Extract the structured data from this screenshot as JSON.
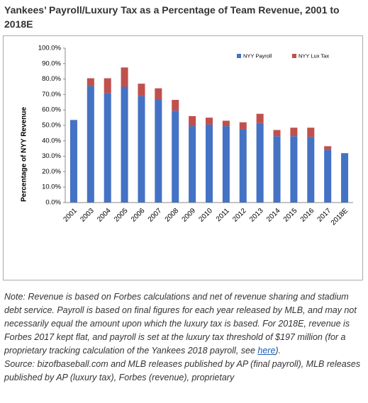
{
  "chart_data": {
    "type": "stacked-bar",
    "title": "Yankees’ Payroll/Luxury Tax as a Percentage of Team Revenue, 2001 to 2018E",
    "y_label": "Percentage of NYY Revenue",
    "categories": [
      "2001",
      "2003",
      "2004",
      "2005",
      "2006",
      "2007",
      "2008",
      "2009",
      "2010",
      "2011",
      "2012",
      "2013",
      "2014",
      "2015",
      "2016",
      "2017",
      "2018E"
    ],
    "series": [
      {
        "name": "NYY Payroll",
        "color": "#4472c4",
        "values": [
          53.5,
          75.5,
          71,
          75,
          69,
          66.5,
          59.5,
          49.5,
          50.5,
          49.5,
          47.5,
          51.5,
          43,
          43,
          42.5,
          34,
          32
        ]
      },
      {
        "name": "NYY Lux Tax",
        "color": "#c0504d",
        "values": [
          0,
          5,
          9.5,
          12.5,
          8,
          7.5,
          7,
          6.5,
          4.5,
          3.5,
          4.5,
          6,
          4,
          5.5,
          6,
          2.5,
          0
        ]
      }
    ],
    "ylim": [
      0,
      100
    ],
    "yticks": [
      {
        "value": 0,
        "label": "0.0%"
      },
      {
        "value": 10,
        "label": "10.0%"
      },
      {
        "value": 20,
        "label": "20.0%"
      },
      {
        "value": 30,
        "label": "30.0%"
      },
      {
        "value": 40,
        "label": "40.0%"
      },
      {
        "value": 50,
        "label": "50.0%"
      },
      {
        "value": 60,
        "label": "60.0%"
      },
      {
        "value": 70,
        "label": "70.0%"
      },
      {
        "value": 80,
        "label": "80.0%"
      },
      {
        "value": 90,
        "label": "90.0%"
      },
      {
        "value": 100,
        "label": "100.0%"
      }
    ],
    "grid": false,
    "legend": "top-right"
  },
  "note": {
    "text": "Note: Revenue is based on Forbes calculations and net of revenue sharing and stadium debt service. Payroll is based on final figures for each year released by MLB, and may not necessarily equal the amount upon which the luxury tax is based. For 2018E, revenue is Forbes 2017 kept flat, and payroll is set at the luxury tax threshold of $197 million (for a proprietary tracking calculation of the Yankees 2018 payroll, see ",
    "link": "here",
    "after": ")."
  },
  "source": "Source: bizofbaseball.com and MLB releases published by AP (final payroll), MLB releases published by AP (luxury tax), Forbes (revenue), proprietary"
}
